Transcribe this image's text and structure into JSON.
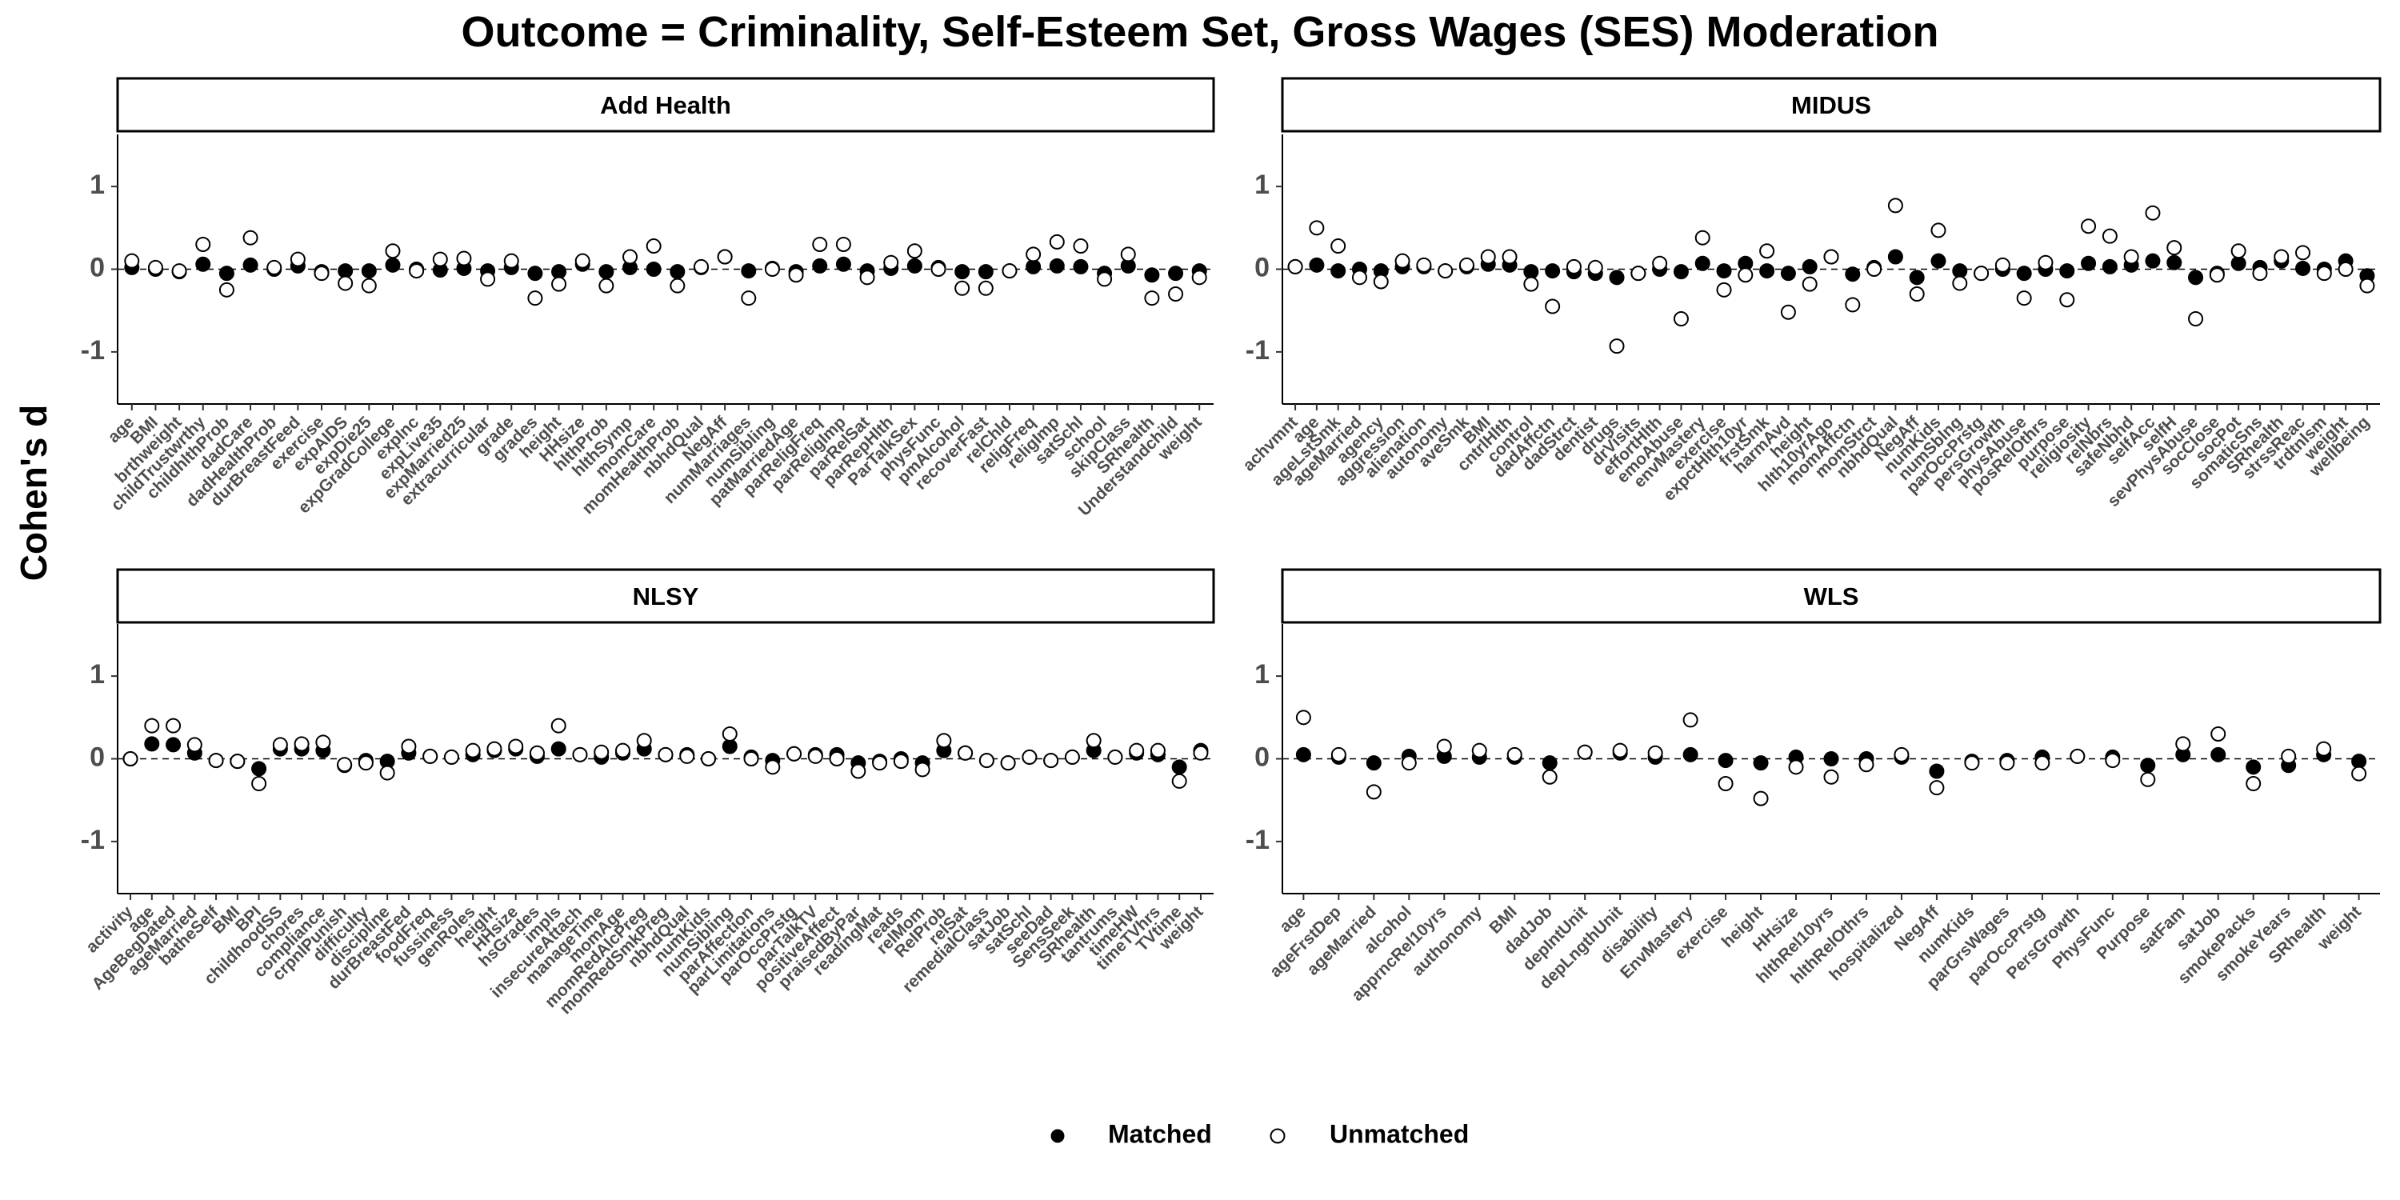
{
  "title": "Outcome = Criminality, Self-Esteem Set, Gross Wages (SES) Moderation",
  "y_label": "Cohen's d",
  "chart_data": [
    {
      "type": "dot",
      "title": "Add Health",
      "ylim": [
        -1.63,
        1.63
      ],
      "yticks": [
        -1,
        0,
        1
      ],
      "hline": 0,
      "categories": [
        "age",
        "BMI",
        "brthweight",
        "childTrustwrthy",
        "childhlthProb",
        "dadCare",
        "dadHealthProb",
        "durBreastFeed",
        "exercise",
        "expAIDS",
        "expDie25",
        "expGradCollege",
        "expInc",
        "expLive35",
        "expMarried25",
        "extracurricular",
        "grade",
        "grades",
        "height",
        "HHsize",
        "hlthProb",
        "hlthSymp",
        "momCare",
        "momHealthProb",
        "nbhdQual",
        "NegAff",
        "numMarriages",
        "numSibling",
        "patMarriedAge",
        "parReligFreq",
        "parReligImp",
        "parRelSat",
        "parRepHlth",
        "ParTalkSex",
        "physFunc",
        "pmAlcohol",
        "recoverFast",
        "relChld",
        "religFreq",
        "religImp",
        "satSchl",
        "school",
        "skipClass",
        "SRhealth",
        "Understandchild",
        "weight"
      ],
      "series": [
        {
          "name": "Matched",
          "color": "#000000",
          "values": [
            0.02,
            0,
            -0.03,
            0.06,
            -0.05,
            0.05,
            0,
            0.04,
            -0.03,
            -0.02,
            -0.02,
            0.05,
            0,
            -0.01,
            0.01,
            -0.02,
            0.02,
            -0.05,
            -0.03,
            0.06,
            -0.03,
            0.02,
            0,
            -0.03,
            0.02,
            0.15,
            -0.02,
            0.01,
            -0.03,
            0.04,
            0.06,
            -0.02,
            0.01,
            0.04,
            0.02,
            -0.03,
            -0.03,
            -0.02,
            0.03,
            0.04,
            0.03,
            -0.05,
            0.04,
            -0.07,
            -0.05,
            -0.02
          ]
        },
        {
          "name": "Unmatched",
          "color": "#ffffff",
          "values": [
            0.1,
            0.02,
            -0.02,
            0.3,
            -0.25,
            0.38,
            0.02,
            0.12,
            -0.05,
            -0.17,
            -0.2,
            0.22,
            -0.02,
            0.12,
            0.13,
            -0.12,
            0.1,
            -0.35,
            -0.18,
            0.1,
            -0.2,
            0.15,
            0.28,
            -0.2,
            0.03,
            0.15,
            -0.35,
            0,
            -0.07,
            0.3,
            0.3,
            -0.1,
            0.08,
            0.22,
            0,
            -0.23,
            -0.23,
            -0.02,
            0.18,
            0.33,
            0.28,
            -0.12,
            0.18,
            -0.35,
            -0.3,
            -0.1
          ]
        }
      ]
    },
    {
      "type": "dot",
      "title": "MIDUS",
      "ylim": [
        -1.63,
        1.63
      ],
      "yticks": [
        -1,
        0,
        1
      ],
      "hline": 0,
      "categories": [
        "achvmnt",
        "age",
        "ageLstSmk",
        "ageMarried",
        "agency",
        "aggression",
        "alienation",
        "autonomy",
        "aveSmk",
        "BMI",
        "cntrlHlth",
        "control",
        "dadAffctn",
        "dadStrct",
        "dentist",
        "drugs",
        "drVisits",
        "effortHlth",
        "emoAbuse",
        "envMastery",
        "exercise",
        "expctHlth10yr",
        "frstSmk",
        "harmAvd",
        "height",
        "hlth10yrAgo",
        "momAffctn",
        "momStrct",
        "nbhdQual",
        "NegAff",
        "numKids",
        "numSblng",
        "parOccPrstg",
        "persGrowth",
        "physAbuse",
        "posRelOthrs",
        "purpose",
        "religiosity",
        "relNbrs",
        "safeNbhd",
        "selfAcc",
        "selfH",
        "sevPhysAbuse",
        "socClose",
        "socPot",
        "somaticSns",
        "SRhealth",
        "strssReac",
        "trdtnlsm",
        "weight",
        "wellbeing"
      ],
      "series": [
        {
          "name": "Matched",
          "color": "#000000",
          "values": [
            0.03,
            0.05,
            -0.02,
            0,
            -0.02,
            0.03,
            0.03,
            -0.02,
            0.03,
            0.06,
            0.05,
            -0.03,
            -0.02,
            -0.03,
            -0.05,
            -0.1,
            -0.05,
            0,
            -0.03,
            0.07,
            -0.02,
            0.07,
            -0.02,
            -0.05,
            0.03,
            0.15,
            -0.06,
            0.02,
            0.15,
            -0.1,
            0.1,
            -0.02,
            -0.05,
            0,
            -0.05,
            0,
            -0.02,
            0.07,
            0.03,
            0.05,
            0.1,
            0.08,
            -0.1,
            -0.05,
            0.07,
            0.02,
            0.1,
            0.01,
            0,
            0.1,
            -0.08
          ]
        },
        {
          "name": "Unmatched",
          "color": "#ffffff",
          "values": [
            0.03,
            0.5,
            0.28,
            -0.1,
            -0.15,
            0.1,
            0.05,
            -0.02,
            0.05,
            0.15,
            0.15,
            -0.18,
            -0.45,
            0.03,
            0.02,
            -0.93,
            -0.05,
            0.07,
            -0.6,
            0.38,
            -0.25,
            -0.07,
            0.22,
            -0.52,
            -0.18,
            0.15,
            -0.43,
            0,
            0.77,
            -0.3,
            0.47,
            -0.17,
            -0.05,
            0.05,
            -0.35,
            0.08,
            -0.37,
            0.52,
            0.4,
            0.15,
            0.68,
            0.26,
            -0.6,
            -0.07,
            0.22,
            -0.05,
            0.15,
            0.2,
            -0.05,
            0,
            -0.2
          ]
        }
      ]
    },
    {
      "type": "dot",
      "title": "NLSY",
      "ylim": [
        -1.63,
        1.63
      ],
      "yticks": [
        -1,
        0,
        1
      ],
      "hline": 0,
      "categories": [
        "activity",
        "age",
        "AgeBegDated",
        "ageMarried",
        "batheSelf",
        "BMI",
        "BPI",
        "childhoodSS",
        "chores",
        "compliance",
        "crpnlPunish",
        "difficulty",
        "discipline",
        "durBreastFed",
        "foodFreq",
        "fussiness",
        "genRoles",
        "height",
        "HHsize",
        "hsGrades",
        "impls",
        "insecureAttach",
        "manageTime",
        "momAge",
        "momRedAlcPreg",
        "momRedSmkPreg",
        "nbhdQual",
        "numKids",
        "numSibling",
        "parAffection",
        "parLimitations",
        "parOccPrstg",
        "parTalkTV",
        "positiveAffect",
        "praisedByPar",
        "readingMat",
        "reads",
        "relMom",
        "RelProb",
        "relSat",
        "remedialClass",
        "satJob",
        "satSchl",
        "seeDad",
        "SensSeek",
        "SRhealth",
        "tantrums",
        "timeHW",
        "timeTVhrs",
        "TVtime",
        "weight"
      ],
      "series": [
        {
          "name": "Matched",
          "color": "#000000",
          "values": [
            0,
            0.18,
            0.17,
            0.07,
            -0.02,
            -0.03,
            -0.12,
            0.12,
            0.12,
            0.1,
            -0.08,
            -0.02,
            -0.03,
            0.07,
            0.03,
            0.02,
            0.05,
            0.1,
            0.12,
            0.03,
            0.12,
            0.05,
            0.02,
            0.07,
            0.12,
            0.05,
            0.05,
            0,
            0.15,
            0.02,
            -0.02,
            0.06,
            0.05,
            0.05,
            -0.05,
            -0.03,
            0,
            -0.05,
            0.1,
            0.07,
            -0.02,
            -0.05,
            0.02,
            -0.02,
            0.02,
            0.1,
            0.02,
            0.07,
            0.05,
            -0.1,
            0.1
          ]
        },
        {
          "name": "Unmatched",
          "color": "#ffffff",
          "values": [
            0,
            0.4,
            0.4,
            0.17,
            -0.02,
            -0.03,
            -0.3,
            0.17,
            0.18,
            0.2,
            -0.07,
            -0.05,
            -0.17,
            0.15,
            0.03,
            0.02,
            0.1,
            0.12,
            0.15,
            0.07,
            0.4,
            0.05,
            0.08,
            0.1,
            0.22,
            0.05,
            0.03,
            0,
            0.3,
            0,
            -0.1,
            0.06,
            0.03,
            0,
            -0.15,
            -0.05,
            -0.03,
            -0.13,
            0.22,
            0.07,
            -0.02,
            -0.05,
            0.02,
            -0.02,
            0.02,
            0.22,
            0.02,
            0.1,
            0.1,
            -0.27,
            0.07
          ]
        }
      ]
    },
    {
      "type": "dot",
      "title": "WLS",
      "ylim": [
        -1.63,
        1.63
      ],
      "yticks": [
        -1,
        0,
        1
      ],
      "hline": 0,
      "categories": [
        "age",
        "ageFrstDep",
        "ageMarried",
        "alcohol",
        "apprncRel10yrs",
        "authonomy",
        "BMI",
        "dadJob",
        "depIntUnit",
        "depLngthUnit",
        "disability",
        "EnvMastery",
        "exercise",
        "height",
        "HHsize",
        "hlthRel10yrs",
        "hlthRelOthrs",
        "hospitalized",
        "NegAff",
        "numKids",
        "parGrsWages",
        "parOccPrstg",
        "PersGrowth",
        "PhysFunc",
        "Purpose",
        "satFam",
        "satJob",
        "smokePacks",
        "smokeYears",
        "SRhealth",
        "weight"
      ],
      "series": [
        {
          "name": "Matched",
          "color": "#000000",
          "values": [
            0.05,
            0.02,
            -0.05,
            0.03,
            0.03,
            0.02,
            0.02,
            -0.05,
            0.08,
            0.07,
            0.02,
            0.05,
            -0.02,
            -0.05,
            0.02,
            0,
            0,
            0.02,
            -0.15,
            -0.03,
            -0.02,
            0.02,
            0.03,
            0.02,
            -0.08,
            0.05,
            0.05,
            -0.1,
            -0.08,
            0.05,
            -0.03
          ]
        },
        {
          "name": "Unmatched",
          "color": "#ffffff",
          "values": [
            0.5,
            0.05,
            -0.4,
            -0.05,
            0.15,
            0.1,
            0.05,
            -0.22,
            0.08,
            0.1,
            0.07,
            0.47,
            -0.3,
            -0.48,
            -0.1,
            -0.22,
            -0.07,
            0.05,
            -0.35,
            -0.05,
            -0.05,
            -0.05,
            0.03,
            -0.02,
            -0.25,
            0.18,
            0.3,
            -0.3,
            0.03,
            0.12,
            -0.18
          ]
        }
      ]
    }
  ]
}
